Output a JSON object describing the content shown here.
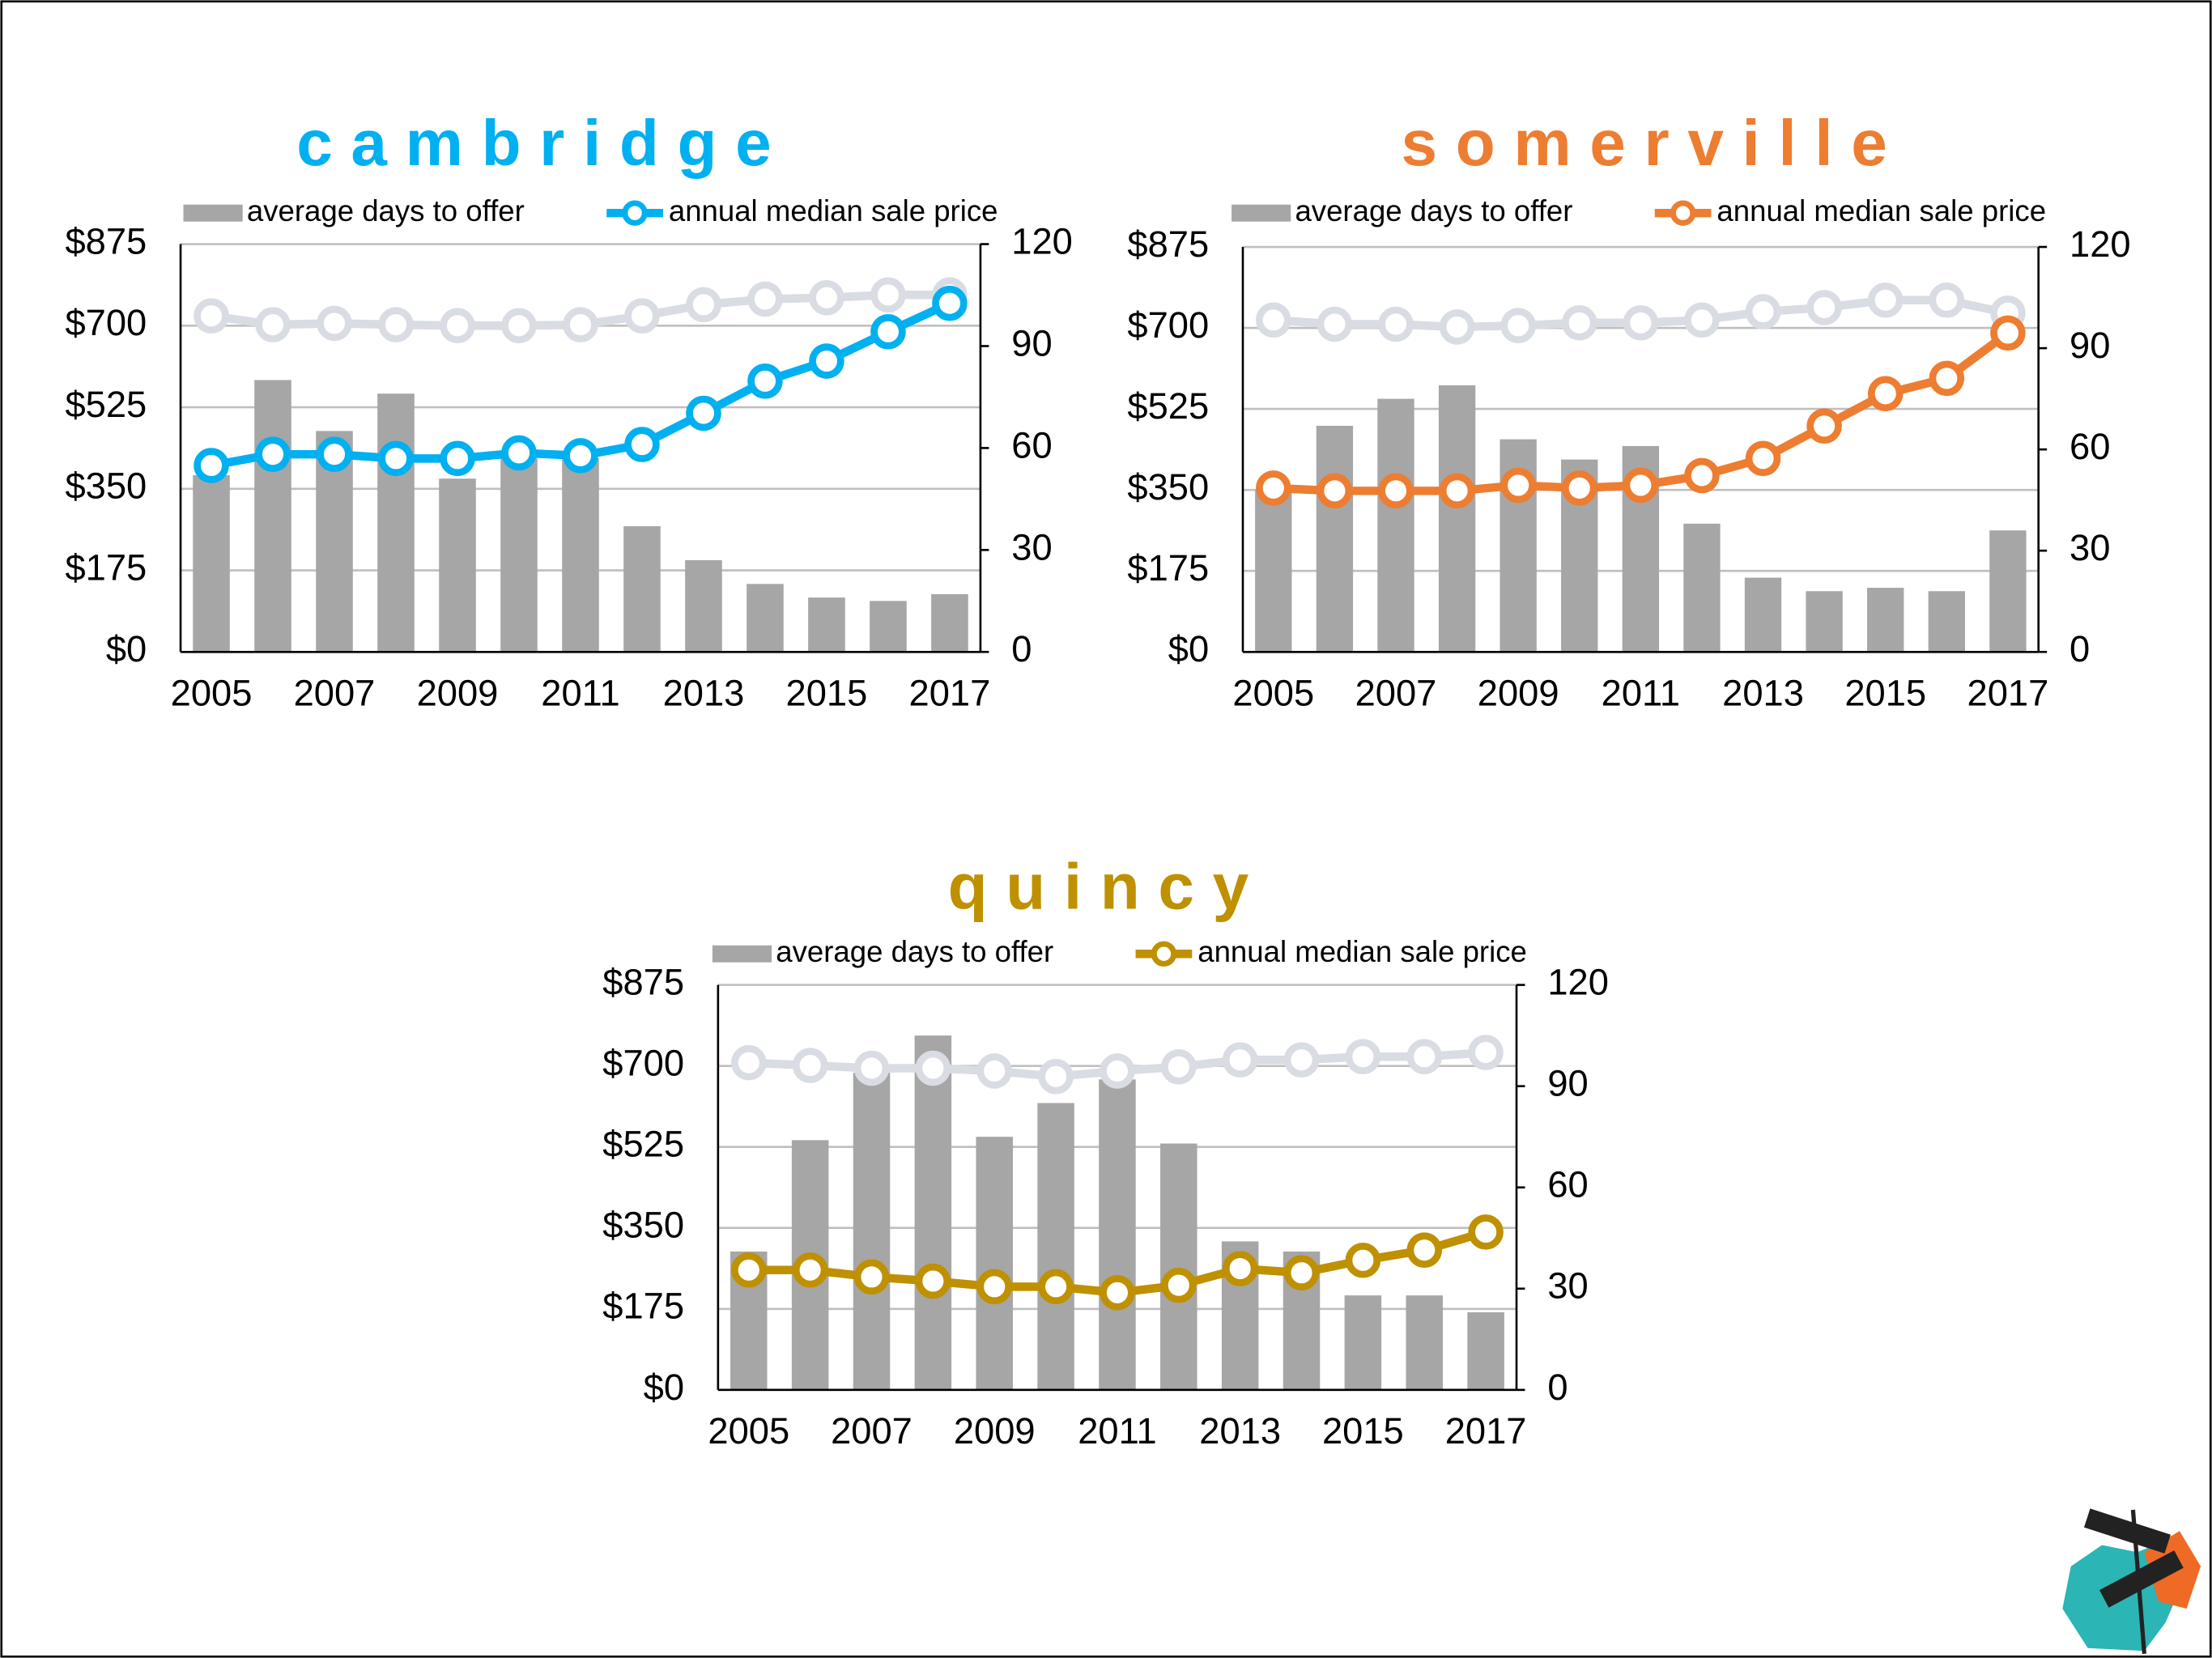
{
  "chart_data": [
    {
      "type": "combo",
      "title": "cambridge",
      "title_color": "#00b0f0",
      "categories": [
        "2005",
        null,
        "2007",
        null,
        "2009",
        null,
        "2011",
        null,
        "2013",
        null,
        "2015",
        null,
        "2017"
      ],
      "series": [
        {
          "name": "average days to offer",
          "mark": "bar",
          "axis": "y2",
          "color": "#a6a6a6",
          "values": [
            52,
            80,
            65,
            76,
            51,
            57,
            57,
            37,
            27,
            20,
            16,
            15,
            17
          ]
        },
        {
          "mark": "line",
          "color": "#d9dce3",
          "values": [
            721,
            702,
            705,
            702,
            700,
            700,
            702,
            721,
            745,
            757,
            760,
            766,
            766
          ]
        },
        {
          "name": "annual median sale price",
          "mark": "line",
          "color": "#00b0f0",
          "values": [
            400,
            424,
            424,
            415,
            415,
            427,
            421,
            445,
            512,
            581,
            624,
            687,
            748
          ]
        }
      ],
      "ylim": [
        0,
        875
      ],
      "yticks": [
        {
          "value": 0,
          "label": "$0"
        },
        {
          "value": 175,
          "label": "$175"
        },
        {
          "value": 350,
          "label": "$350"
        },
        {
          "value": 525,
          "label": "$525"
        },
        {
          "value": 700,
          "label": "$700"
        },
        {
          "value": 875,
          "label": "$875"
        }
      ],
      "y2lim": [
        0,
        120
      ],
      "y2ticks": [
        0,
        30,
        60,
        90,
        120
      ],
      "grid": true
    },
    {
      "type": "combo",
      "title": "somerville",
      "title_color": "#ed7d31",
      "categories": [
        "2005",
        null,
        "2007",
        null,
        "2009",
        null,
        "2011",
        null,
        "2013",
        null,
        "2015",
        null,
        "2017"
      ],
      "series": [
        {
          "name": "average days to offer",
          "mark": "bar",
          "axis": "y2",
          "color": "#a6a6a6",
          "values": [
            48,
            67,
            75,
            79,
            63,
            57,
            61,
            38,
            22,
            18,
            19,
            18,
            36
          ]
        },
        {
          "mark": "line",
          "color": "#d9dce3",
          "values": [
            717,
            708,
            708,
            702,
            705,
            711,
            711,
            717,
            735,
            744,
            760,
            760,
            732
          ]
        },
        {
          "name": "annual median sale price",
          "mark": "line",
          "color": "#ed7d31",
          "values": [
            354,
            348,
            348,
            348,
            360,
            354,
            360,
            381,
            418,
            488,
            558,
            591,
            689
          ]
        }
      ],
      "ylim": [
        0,
        875
      ],
      "yticks": [
        {
          "value": 0,
          "label": "$0"
        },
        {
          "value": 175,
          "label": "$175"
        },
        {
          "value": 350,
          "label": "$350"
        },
        {
          "value": 525,
          "label": "$525"
        },
        {
          "value": 700,
          "label": "$700"
        },
        {
          "value": 875,
          "label": "$875"
        }
      ],
      "y2lim": [
        0,
        120
      ],
      "y2ticks": [
        0,
        30,
        60,
        90,
        120
      ],
      "grid": true
    },
    {
      "type": "combo",
      "title": "quincy",
      "title_color": "#bf9000",
      "categories": [
        "2005",
        null,
        "2007",
        null,
        "2009",
        null,
        "2011",
        null,
        "2013",
        null,
        "2015",
        null,
        "2017"
      ],
      "series": [
        {
          "name": "average days to offer",
          "mark": "bar",
          "axis": "y2",
          "color": "#a6a6a6",
          "values": [
            41,
            74,
            94,
            105,
            75,
            85,
            92,
            73,
            44,
            41,
            28,
            28,
            23
          ]
        },
        {
          "mark": "line",
          "color": "#d9dce3",
          "values": [
            707,
            701,
            695,
            695,
            689,
            677,
            689,
            698,
            713,
            713,
            720,
            720,
            729
          ]
        },
        {
          "name": "annual median sale price",
          "mark": "line",
          "color": "#bf9000",
          "values": [
            259,
            259,
            244,
            235,
            223,
            223,
            210,
            226,
            262,
            253,
            280,
            302,
            341
          ]
        }
      ],
      "ylim": [
        0,
        875
      ],
      "yticks": [
        {
          "value": 0,
          "label": "$0"
        },
        {
          "value": 175,
          "label": "$175"
        },
        {
          "value": 350,
          "label": "$350"
        },
        {
          "value": 525,
          "label": "$525"
        },
        {
          "value": 700,
          "label": "$700"
        },
        {
          "value": 875,
          "label": "$875"
        }
      ],
      "y2lim": [
        0,
        120
      ],
      "y2ticks": [
        0,
        30,
        60,
        90,
        120
      ],
      "grid": true
    }
  ]
}
